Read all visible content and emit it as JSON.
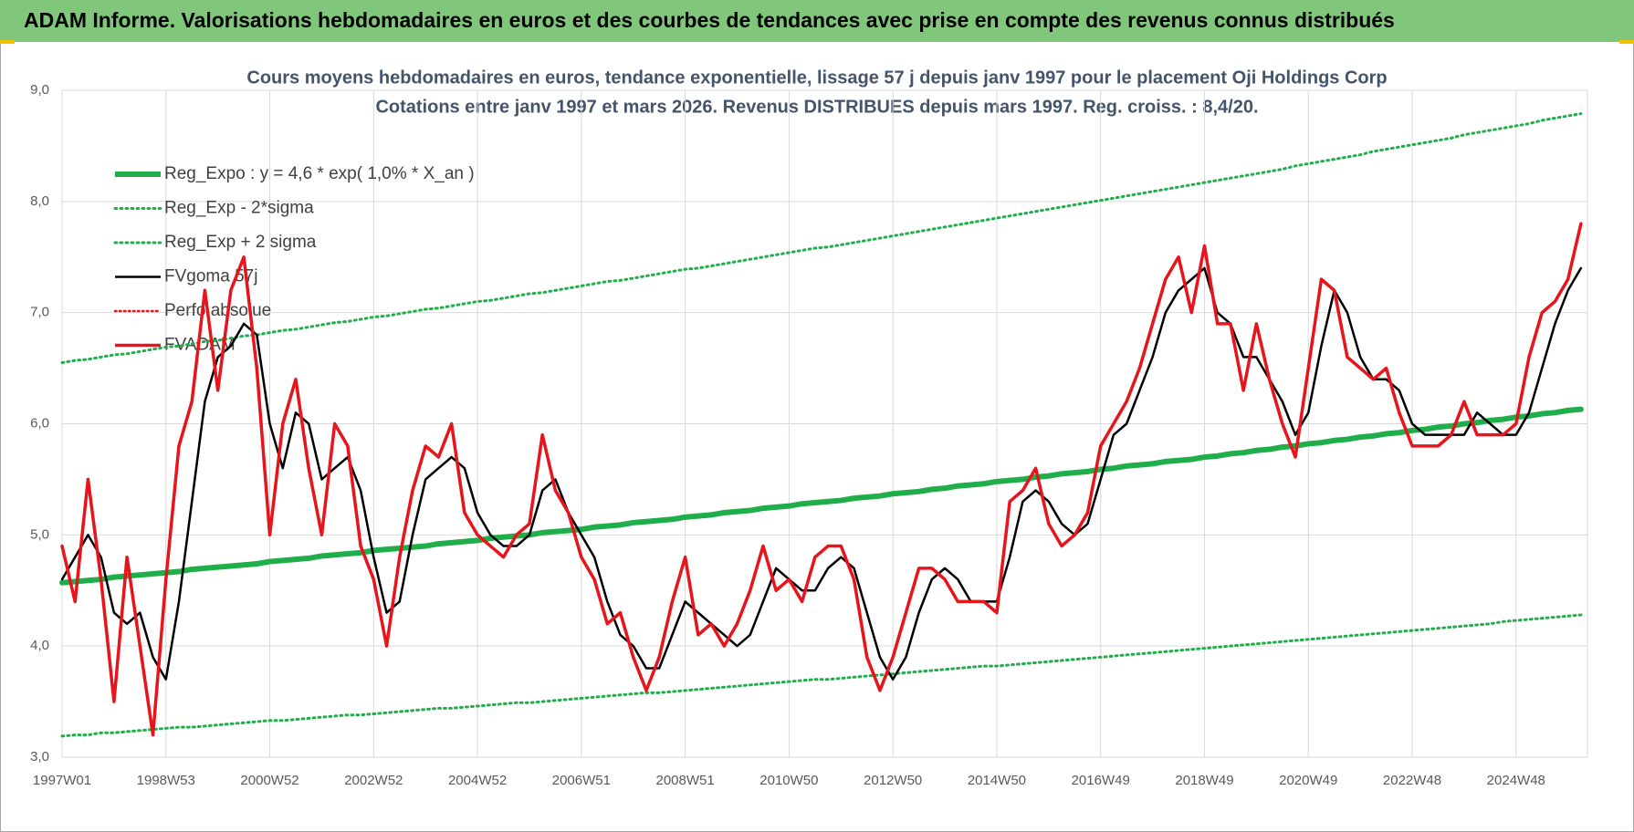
{
  "header": {
    "title": "ADAM Informe. Valorisations hebdomadaires en euros et des courbes de tendances avec prise en compte des revenus connus distribués"
  },
  "chart_data": {
    "type": "line",
    "title": "Cours moyens hebdomadaires en euros, tendance exponentielle, lissage 57 j depuis janv 1997 pour le placement Oji Holdings Corp",
    "subtitle": "Cotations entre janv 1997 et mars 2026. Revenus DISTRIBUES depuis mars 1997. Reg. croiss. : 8,4/20.",
    "ylim": [
      3,
      9
    ],
    "yticks": [
      {
        "value": 3,
        "label": "3,0"
      },
      {
        "value": 4,
        "label": "4,0"
      },
      {
        "value": 5,
        "label": "5,0"
      },
      {
        "value": 6,
        "label": "6,0"
      },
      {
        "value": 7,
        "label": "7,0"
      },
      {
        "value": 8,
        "label": "8,0"
      },
      {
        "value": 9,
        "label": "9,0"
      }
    ],
    "grid": true,
    "legend": "top-left",
    "categories": [
      "1997W01",
      null,
      null,
      null,
      null,
      null,
      null,
      null,
      "1998W53",
      null,
      null,
      null,
      null,
      null,
      null,
      null,
      "2000W52",
      null,
      null,
      null,
      null,
      null,
      null,
      null,
      "2002W52",
      null,
      null,
      null,
      null,
      null,
      null,
      null,
      "2004W52",
      null,
      null,
      null,
      null,
      null,
      null,
      null,
      "2006W51",
      null,
      null,
      null,
      null,
      null,
      null,
      null,
      "2008W51",
      null,
      null,
      null,
      null,
      null,
      null,
      null,
      "2010W50",
      null,
      null,
      null,
      null,
      null,
      null,
      null,
      "2012W50",
      null,
      null,
      null,
      null,
      null,
      null,
      null,
      "2014W50",
      null,
      null,
      null,
      null,
      null,
      null,
      null,
      "2016W49",
      null,
      null,
      null,
      null,
      null,
      null,
      null,
      "2018W49",
      null,
      null,
      null,
      null,
      null,
      null,
      null,
      "2020W49",
      null,
      null,
      null,
      null,
      null,
      null,
      null,
      "2022W48",
      null,
      null,
      null,
      null,
      null,
      null,
      null,
      "2024W48",
      null,
      null,
      null,
      null,
      null
    ],
    "series": [
      {
        "name": "Reg_Expo : y = 4,6 * exp( 1,0% *  X_an )",
        "color": "#1fae4a",
        "style": "solid",
        "values": [
          4.57,
          4.58,
          4.59,
          4.6,
          4.62,
          4.63,
          4.64,
          4.65,
          4.66,
          4.67,
          4.69,
          4.7,
          4.71,
          4.72,
          4.73,
          4.74,
          4.76,
          4.77,
          4.78,
          4.79,
          4.81,
          4.82,
          4.83,
          4.84,
          4.86,
          4.87,
          4.88,
          4.89,
          4.9,
          4.92,
          4.93,
          4.94,
          4.95,
          4.97,
          4.98,
          4.99,
          5.0,
          5.02,
          5.03,
          5.04,
          5.05,
          5.07,
          5.08,
          5.09,
          5.11,
          5.12,
          5.13,
          5.14,
          5.16,
          5.17,
          5.18,
          5.2,
          5.21,
          5.22,
          5.24,
          5.25,
          5.26,
          5.28,
          5.29,
          5.3,
          5.31,
          5.33,
          5.34,
          5.35,
          5.37,
          5.38,
          5.39,
          5.41,
          5.42,
          5.44,
          5.45,
          5.46,
          5.48,
          5.49,
          5.5,
          5.52,
          5.53,
          5.55,
          5.56,
          5.57,
          5.59,
          5.6,
          5.62,
          5.63,
          5.64,
          5.66,
          5.67,
          5.68,
          5.7,
          5.71,
          5.73,
          5.74,
          5.76,
          5.77,
          5.79,
          5.8,
          5.82,
          5.83,
          5.85,
          5.86,
          5.88,
          5.89,
          5.91,
          5.92,
          5.94,
          5.95,
          5.97,
          5.98,
          6.0,
          6.01,
          6.03,
          6.04,
          6.06,
          6.07,
          6.09,
          6.1,
          6.12,
          6.13
        ]
      },
      {
        "name": "Reg_Exp - 2*sigma",
        "color": "#1fae4a",
        "style": "dotted",
        "values": [
          3.19,
          3.2,
          3.2,
          3.22,
          3.22,
          3.23,
          3.24,
          3.25,
          3.26,
          3.27,
          3.27,
          3.28,
          3.29,
          3.3,
          3.31,
          3.32,
          3.33,
          3.33,
          3.34,
          3.35,
          3.36,
          3.37,
          3.38,
          3.38,
          3.39,
          3.4,
          3.41,
          3.42,
          3.43,
          3.44,
          3.44,
          3.45,
          3.46,
          3.47,
          3.48,
          3.49,
          3.49,
          3.5,
          3.51,
          3.52,
          3.53,
          3.54,
          3.55,
          3.56,
          3.57,
          3.58,
          3.58,
          3.59,
          3.6,
          3.61,
          3.62,
          3.63,
          3.64,
          3.65,
          3.66,
          3.67,
          3.68,
          3.69,
          3.7,
          3.7,
          3.71,
          3.72,
          3.73,
          3.74,
          3.75,
          3.76,
          3.77,
          3.78,
          3.79,
          3.8,
          3.81,
          3.82,
          3.82,
          3.83,
          3.84,
          3.85,
          3.86,
          3.87,
          3.88,
          3.89,
          3.9,
          3.91,
          3.92,
          3.93,
          3.94,
          3.95,
          3.96,
          3.97,
          3.98,
          3.99,
          4.0,
          4.01,
          4.02,
          4.03,
          4.04,
          4.05,
          4.06,
          4.07,
          4.08,
          4.09,
          4.1,
          4.11,
          4.12,
          4.13,
          4.14,
          4.15,
          4.16,
          4.17,
          4.18,
          4.19,
          4.2,
          4.22,
          4.23,
          4.24,
          4.25,
          4.26,
          4.27,
          4.28
        ]
      },
      {
        "name": "Reg_Exp + 2 sigma",
        "color": "#1fae4a",
        "style": "dotted",
        "values": [
          6.55,
          6.57,
          6.58,
          6.6,
          6.62,
          6.63,
          6.65,
          6.67,
          6.69,
          6.7,
          6.72,
          6.74,
          6.75,
          6.77,
          6.79,
          6.8,
          6.82,
          6.84,
          6.85,
          6.87,
          6.89,
          6.91,
          6.92,
          6.94,
          6.96,
          6.97,
          6.99,
          7.01,
          7.03,
          7.04,
          7.06,
          7.08,
          7.1,
          7.11,
          7.13,
          7.15,
          7.17,
          7.18,
          7.2,
          7.22,
          7.24,
          7.26,
          7.28,
          7.29,
          7.31,
          7.33,
          7.35,
          7.37,
          7.39,
          7.4,
          7.42,
          7.44,
          7.46,
          7.48,
          7.5,
          7.52,
          7.54,
          7.56,
          7.58,
          7.59,
          7.61,
          7.63,
          7.65,
          7.67,
          7.69,
          7.71,
          7.73,
          7.75,
          7.77,
          7.79,
          7.81,
          7.83,
          7.85,
          7.87,
          7.89,
          7.91,
          7.93,
          7.95,
          7.97,
          7.99,
          8.01,
          8.03,
          8.05,
          8.07,
          8.09,
          8.11,
          8.13,
          8.15,
          8.17,
          8.19,
          8.21,
          8.23,
          8.25,
          8.27,
          8.29,
          8.32,
          8.34,
          8.36,
          8.38,
          8.4,
          8.42,
          8.45,
          8.47,
          8.49,
          8.51,
          8.53,
          8.55,
          8.57,
          8.6,
          8.62,
          8.64,
          8.66,
          8.68,
          8.7,
          8.73,
          8.75,
          8.77,
          8.79
        ]
      },
      {
        "name": "FVgoma 57j",
        "color": "#000000",
        "style": "solid",
        "values": [
          4.6,
          4.8,
          5.0,
          4.8,
          4.3,
          4.2,
          4.3,
          3.9,
          3.7,
          4.4,
          5.3,
          6.2,
          6.6,
          6.7,
          6.9,
          6.8,
          6.0,
          5.6,
          6.1,
          6.0,
          5.5,
          5.6,
          5.7,
          5.4,
          4.8,
          4.3,
          4.4,
          5.0,
          5.5,
          5.6,
          5.7,
          5.6,
          5.2,
          5.0,
          4.9,
          4.9,
          5.0,
          5.4,
          5.5,
          5.2,
          5.0,
          4.8,
          4.4,
          4.1,
          4.0,
          3.8,
          3.8,
          4.1,
          4.4,
          4.3,
          4.2,
          4.1,
          4.0,
          4.1,
          4.4,
          4.7,
          4.6,
          4.5,
          4.5,
          4.7,
          4.8,
          4.7,
          4.3,
          3.9,
          3.7,
          3.9,
          4.3,
          4.6,
          4.7,
          4.6,
          4.4,
          4.4,
          4.4,
          4.8,
          5.3,
          5.4,
          5.3,
          5.1,
          5.0,
          5.1,
          5.5,
          5.9,
          6.0,
          6.3,
          6.6,
          7.0,
          7.2,
          7.3,
          7.4,
          7.0,
          6.9,
          6.6,
          6.6,
          6.4,
          6.2,
          5.9,
          6.1,
          6.7,
          7.2,
          7.0,
          6.6,
          6.4,
          6.4,
          6.3,
          6.0,
          5.9,
          5.9,
          5.9,
          5.9,
          6.1,
          6.0,
          5.9,
          5.9,
          6.1,
          6.5,
          6.9,
          7.2,
          7.4
        ]
      },
      {
        "name": "Perfo absolue",
        "color": "#e8141b",
        "style": "dotted"
      },
      {
        "name": "FVADAM",
        "color": "#e8141b",
        "style": "solid",
        "values": [
          4.9,
          4.4,
          5.5,
          4.6,
          3.5,
          4.8,
          4.0,
          3.2,
          4.6,
          5.8,
          6.2,
          7.2,
          6.3,
          7.2,
          7.5,
          6.5,
          5.0,
          6.0,
          6.4,
          5.6,
          5.0,
          6.0,
          5.8,
          4.9,
          4.6,
          4.0,
          4.8,
          5.4,
          5.8,
          5.7,
          6.0,
          5.2,
          5.0,
          4.9,
          4.8,
          5.0,
          5.1,
          5.9,
          5.4,
          5.2,
          4.8,
          4.6,
          4.2,
          4.3,
          3.9,
          3.6,
          3.9,
          4.4,
          4.8,
          4.1,
          4.2,
          4.0,
          4.2,
          4.5,
          4.9,
          4.5,
          4.6,
          4.4,
          4.8,
          4.9,
          4.9,
          4.6,
          3.9,
          3.6,
          3.9,
          4.3,
          4.7,
          4.7,
          4.6,
          4.4,
          4.4,
          4.4,
          4.3,
          5.3,
          5.4,
          5.6,
          5.1,
          4.9,
          5.0,
          5.2,
          5.8,
          6.0,
          6.2,
          6.5,
          6.9,
          7.3,
          7.5,
          7.0,
          7.6,
          6.9,
          6.9,
          6.3,
          6.9,
          6.4,
          6.0,
          5.7,
          6.5,
          7.3,
          7.2,
          6.6,
          6.5,
          6.4,
          6.5,
          6.1,
          5.8,
          5.8,
          5.8,
          5.9,
          6.2,
          5.9,
          5.9,
          5.9,
          6.0,
          6.6,
          7.0,
          7.1,
          7.3,
          7.8
        ]
      }
    ]
  }
}
